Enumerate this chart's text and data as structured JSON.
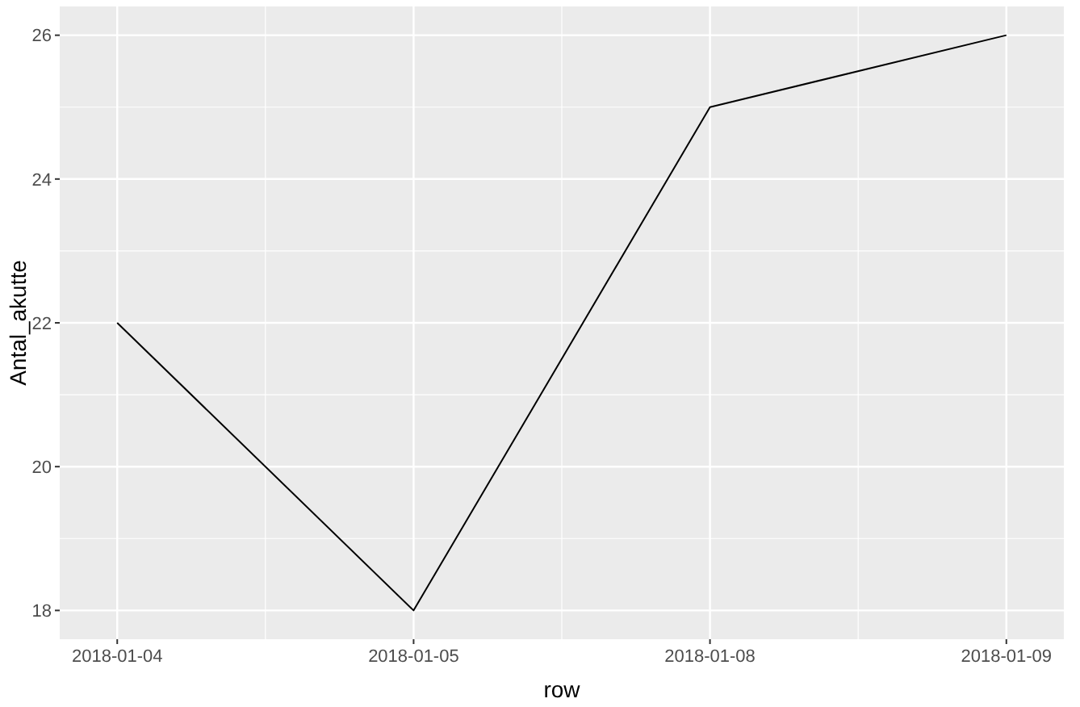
{
  "chart_data": {
    "type": "line",
    "xlabel": "row",
    "ylabel": "Antal_akutte",
    "categories": [
      "2018-01-04",
      "2018-01-05",
      "2018-01-08",
      "2018-01-09"
    ],
    "series": [
      {
        "color": "#000000",
        "values": [
          22,
          18,
          25,
          26
        ]
      }
    ],
    "ylim": [
      17.6,
      26.4
    ],
    "yticks": [
      18,
      20,
      22,
      24,
      26
    ],
    "grid": true
  }
}
